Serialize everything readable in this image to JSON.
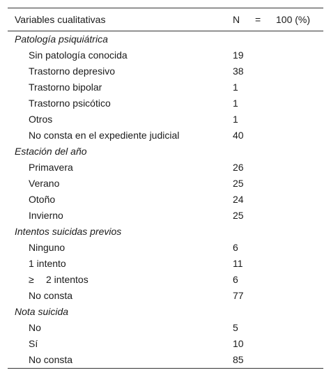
{
  "header": {
    "variables": "Variables cualitativas",
    "n": "N",
    "equals": "=",
    "percent": "100 (%)"
  },
  "sections": [
    {
      "title": "Patología psiquiátrica",
      "rows": [
        {
          "label": "Sin patología conocida",
          "n": "19"
        },
        {
          "label": "Trastorno depresivo",
          "n": "38"
        },
        {
          "label": "Trastorno bipolar",
          "n": "1"
        },
        {
          "label": "Trastorno psicótico",
          "n": "1"
        },
        {
          "label": "Otros",
          "n": "1"
        },
        {
          "label": "No consta en el expediente judicial",
          "n": "40"
        }
      ]
    },
    {
      "title": "Estación del año",
      "rows": [
        {
          "label": "Primavera",
          "n": "26"
        },
        {
          "label": "Verano",
          "n": "25"
        },
        {
          "label": "Otoño",
          "n": "24"
        },
        {
          "label": "Invierno",
          "n": "25"
        }
      ]
    },
    {
      "title": "Intentos suicidas previos",
      "rows": [
        {
          "label": "Ninguno",
          "n": "6"
        },
        {
          "label": "1 intento",
          "n": "11"
        },
        {
          "symbol": "≥",
          "label": "2 intentos",
          "n": "6"
        },
        {
          "label": "No consta",
          "n": "77"
        }
      ]
    },
    {
      "title": "Nota suicida",
      "rows": [
        {
          "label": "No",
          "n": "5"
        },
        {
          "label": "Sí",
          "n": "10"
        },
        {
          "label": "No consta",
          "n": "85"
        }
      ]
    }
  ]
}
